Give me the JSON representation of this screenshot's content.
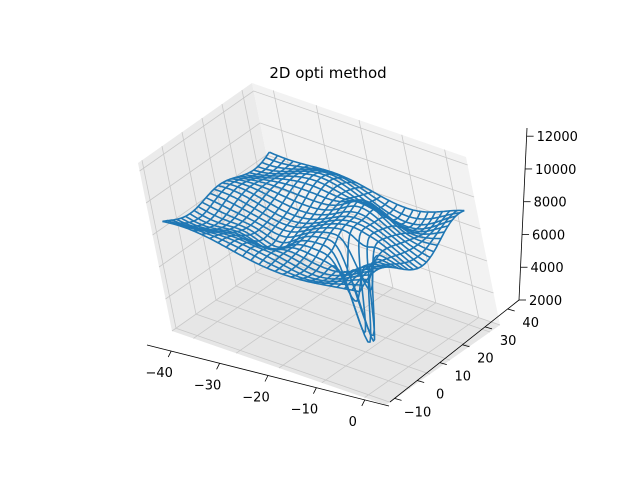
{
  "chart_data": {
    "type": "surface-wireframe-3d",
    "title": "2D opti method",
    "xlabel": "",
    "ylabel": "",
    "zlabel": "",
    "x_ticks": [
      "−40",
      "−30",
      "−20",
      "−10",
      "0"
    ],
    "y_ticks": [
      "−10",
      "0",
      "10",
      "20",
      "30",
      "40"
    ],
    "z_ticks": [
      "2000",
      "4000",
      "6000",
      "8000",
      "10000",
      "12000"
    ],
    "xlim": [
      -45,
      5
    ],
    "ylim": [
      -12,
      45
    ],
    "zlim": [
      2000,
      12500
    ],
    "grid": true,
    "series_color": "#1f77b4",
    "surface_summary": {
      "baseline_z": 8500,
      "min_z": 2400,
      "min_location": {
        "x": -7,
        "y": 8
      },
      "max_z": 10300
    }
  }
}
